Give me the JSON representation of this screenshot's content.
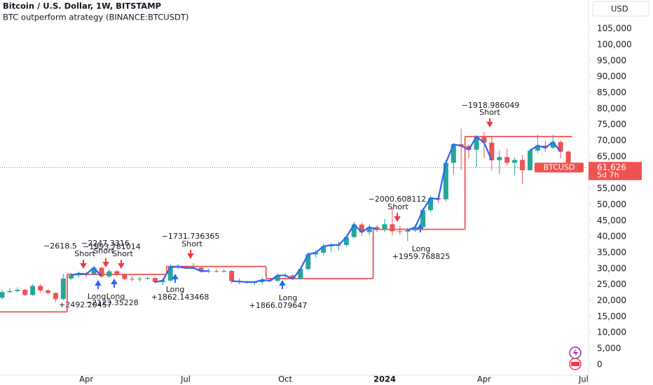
{
  "chart_data": {
    "type": "candlestick",
    "title": "Bitcoin / U.S. Dollar, 1W, BITSTAMP",
    "subtitle": "BTC outperform atrategy (BINANCE:BTCUSDT)",
    "currency": "USD",
    "symbol_tag": "BTCUSD",
    "last_price_label": "61,626",
    "countdown": "5d 7h",
    "up_color": "#26a69a",
    "down_color": "#ef5350",
    "categories": [
      null,
      null,
      null,
      null,
      null,
      null,
      null,
      null,
      null,
      null,
      null,
      "Apr",
      null,
      null,
      null,
      null,
      null,
      null,
      null,
      null,
      null,
      null,
      null,
      null,
      "Jul",
      null,
      null,
      null,
      null,
      null,
      null,
      null,
      null,
      null,
      null,
      null,
      null,
      "Oct",
      null,
      null,
      null,
      null,
      null,
      null,
      null,
      null,
      null,
      null,
      null,
      null,
      "2024",
      null,
      null,
      null,
      null,
      null,
      null,
      null,
      null,
      null,
      null,
      null,
      null,
      "Apr",
      null,
      null,
      null,
      null,
      null,
      null,
      null,
      null,
      null,
      null,
      null,
      null,
      "Jul"
    ],
    "open": [
      20900,
      22700,
      23000,
      23400,
      21800,
      24600,
      23200,
      22400,
      20500,
      26900,
      27900,
      28500,
      28300,
      30300,
      27600,
      29200,
      28400,
      26800,
      26700,
      26900,
      27100,
      25800,
      26300,
      30500,
      30600,
      30200,
      30300,
      29200,
      29300,
      29100,
      29300,
      26100,
      26000,
      25800,
      25800,
      26500,
      26200,
      27900,
      27900,
      26800,
      29900,
      34500,
      35000,
      37000,
      37400,
      37400,
      39900,
      43800,
      41400,
      43000,
      42300,
      43900,
      41700,
      41600,
      42000,
      43000,
      48300,
      52100,
      51700,
      63100,
      68900,
      68400,
      67200,
      71300,
      69400,
      63900,
      64900,
      63100,
      64000,
      60800,
      66900,
      68500,
      67800,
      69600,
      66600,
      null,
      null
    ],
    "high": [
      23400,
      23900,
      24200,
      23700,
      25200,
      25200,
      23600,
      22600,
      28400,
      28700,
      29100,
      29200,
      30900,
      30600,
      29800,
      29500,
      28400,
      27600,
      27500,
      27400,
      27400,
      27100,
      31400,
      31400,
      31100,
      31800,
      30400,
      30100,
      30000,
      29800,
      29600,
      26900,
      26300,
      26200,
      27400,
      27100,
      28600,
      28600,
      28200,
      30400,
      35200,
      35900,
      37900,
      38000,
      38400,
      40200,
      44700,
      44400,
      43900,
      43700,
      45500,
      49000,
      43400,
      42800,
      43800,
      48900,
      52900,
      53000,
      64000,
      69200,
      73800,
      69000,
      71800,
      72800,
      71300,
      66900,
      67500,
      64800,
      65500,
      67500,
      71900,
      70000,
      71900,
      70200,
      67000,
      null,
      null
    ],
    "low": [
      20400,
      22300,
      22600,
      21400,
      21500,
      22500,
      21900,
      19600,
      20100,
      26500,
      27100,
      27300,
      28200,
      27100,
      27100,
      27700,
      26400,
      26000,
      25900,
      26500,
      25400,
      24800,
      25900,
      29700,
      29900,
      29800,
      28800,
      28600,
      28800,
      28700,
      25400,
      25100,
      25400,
      24900,
      25100,
      25800,
      25900,
      27200,
      26600,
      26600,
      29500,
      33400,
      34100,
      35100,
      35600,
      36800,
      39600,
      40200,
      40500,
      41500,
      41400,
      40300,
      40600,
      38600,
      41500,
      42800,
      47700,
      50600,
      50900,
      59400,
      60900,
      64500,
      61700,
      64600,
      60700,
      59600,
      62400,
      59200,
      56500,
      60700,
      66100,
      66500,
      67500,
      64500,
      60000,
      null,
      null
    ],
    "close": [
      22700,
      23000,
      23400,
      21800,
      24600,
      23200,
      22400,
      20500,
      26900,
      27900,
      28500,
      28300,
      30300,
      27600,
      29200,
      28400,
      26800,
      26700,
      26900,
      27100,
      25800,
      26300,
      30500,
      30600,
      30200,
      30300,
      29200,
      29300,
      29100,
      29300,
      26100,
      26000,
      25800,
      25800,
      26500,
      26200,
      27900,
      27900,
      26800,
      29900,
      34500,
      35000,
      37000,
      37400,
      37400,
      39900,
      43800,
      41400,
      43000,
      42300,
      43900,
      41700,
      41600,
      42000,
      43000,
      48300,
      52100,
      51700,
      63100,
      68900,
      68400,
      67200,
      71300,
      69400,
      63900,
      64900,
      63100,
      64000,
      60800,
      66900,
      68500,
      67800,
      69600,
      66600,
      61626,
      null,
      null
    ],
    "series": [
      {
        "color": "#ef5350",
        "values": [
          16500,
          16500,
          16500,
          16500,
          16500,
          16500,
          16500,
          16500,
          16500,
          28200,
          28200,
          28200,
          28200,
          28200,
          28200,
          28200,
          28200,
          28200,
          28200,
          28200,
          28200,
          28200,
          30700,
          30700,
          30700,
          30700,
          30700,
          30700,
          30700,
          30700,
          30700,
          30700,
          30700,
          30700,
          30700,
          26900,
          26900,
          26900,
          26900,
          26900,
          26900,
          26900,
          26900,
          26900,
          26900,
          26900,
          26900,
          26900,
          26900,
          42300,
          42300,
          42300,
          42300,
          42300,
          42300,
          42300,
          42300,
          42300,
          42300,
          42300,
          42300,
          71300,
          71300,
          71300,
          71300,
          71300,
          71300,
          71300,
          71300,
          71300,
          71300,
          71300,
          71300,
          71300,
          71300,
          null,
          null
        ]
      },
      {
        "color": "#2962ff",
        "values": [
          null,
          null,
          null,
          null,
          null,
          null,
          null,
          null,
          null,
          27900,
          28500,
          28300,
          30300,
          27600,
          null,
          null,
          null,
          null,
          null,
          null,
          25800,
          26300,
          30500,
          30600,
          30200,
          30300,
          29200,
          29300,
          null,
          null,
          26100,
          26000,
          25800,
          25800,
          26500,
          26200,
          27900,
          27900,
          26800,
          29900,
          34500,
          35000,
          37000,
          37400,
          37400,
          39900,
          43800,
          41400,
          43000,
          42300,
          null,
          null,
          null,
          42000,
          43000,
          48300,
          52100,
          51700,
          63100,
          68900,
          68400,
          67200,
          71300,
          69400,
          63900,
          null,
          null,
          null,
          null,
          66900,
          68500,
          67800,
          69600,
          66600,
          null,
          null,
          null
        ]
      }
    ],
    "ylim": [
      -3300,
      114000
    ],
    "yticks": [
      {
        "value": 105000,
        "label": "105,000"
      },
      {
        "value": 100000,
        "label": "100,000"
      },
      {
        "value": 95000,
        "label": "95,000"
      },
      {
        "value": 90000,
        "label": "90,000"
      },
      {
        "value": 85000,
        "label": "85,000"
      },
      {
        "value": 80000,
        "label": "80,000"
      },
      {
        "value": 75000,
        "label": "75,000"
      },
      {
        "value": 70000,
        "label": "70,000"
      },
      {
        "value": 65000,
        "label": "65,000"
      },
      {
        "value": 60000,
        "label": "60,000"
      },
      {
        "value": 55000,
        "label": "55,000"
      },
      {
        "value": 50000,
        "label": "50,000"
      },
      {
        "value": 45000,
        "label": "45,000"
      },
      {
        "value": 40000,
        "label": "40,000"
      },
      {
        "value": 35000,
        "label": "35,000"
      },
      {
        "value": 30000,
        "label": "30,000"
      },
      {
        "value": 25000,
        "label": "25,000"
      },
      {
        "value": 20000,
        "label": "20,000"
      },
      {
        "value": 15000,
        "label": "15,000"
      },
      {
        "value": 10000,
        "label": "10,000"
      },
      {
        "value": 5000,
        "label": "5,000"
      },
      0
    ],
    "grid": false
  },
  "annotations": [
    "−2247.3316",
    "−2618.5",
    "−1993.781014",
    "Short",
    "Short",
    "Short",
    "Long",
    "Long",
    "+2492.20457",
    "−2123.35228",
    "−1731.736365",
    "Short",
    "Long",
    "+1862.143468",
    "Long",
    "+1866.079647",
    "−2000.608112",
    "Short",
    "Long",
    "+1959.768825",
    "−1918.986049",
    "Short"
  ]
}
